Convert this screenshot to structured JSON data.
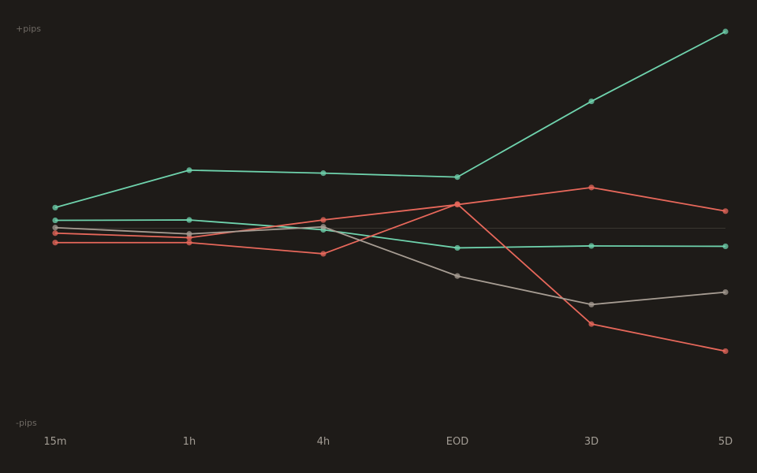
{
  "chart_data": {
    "type": "line",
    "title": "",
    "xlabel": "",
    "ylabel": "",
    "y_top_label": "+pips",
    "y_bottom_label": "-pips",
    "categories": [
      "15m",
      "1h",
      "4h",
      "EOD",
      "3D",
      "5D"
    ],
    "ylim": [
      -100,
      100
    ],
    "grid": false,
    "zero_line": true,
    "series": [
      {
        "color": "#6fd3ad",
        "values": [
          10.5,
          29.5,
          28,
          26,
          64.5,
          100
        ]
      },
      {
        "color": "#6fd3ad",
        "values": [
          4,
          4.2,
          -0.8,
          -10,
          -9,
          -9.2
        ]
      },
      {
        "color": "#e8685b",
        "values": [
          -2.5,
          -4.8,
          4.2,
          12,
          20.7,
          8.7
        ]
      },
      {
        "color": "#e8685b",
        "values": [
          -7.3,
          -7.3,
          -13,
          12.3,
          -48.7,
          -62.5
        ]
      },
      {
        "color": "#a79d93",
        "values": [
          0.3,
          -2.9,
          0.7,
          -24.3,
          -38.8,
          -32.5
        ]
      }
    ]
  }
}
